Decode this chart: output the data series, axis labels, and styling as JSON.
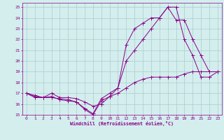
{
  "xlabel": "Windchill (Refroidissement éolien,°C)",
  "xlim": [
    -0.5,
    23.5
  ],
  "ylim": [
    15,
    25.4
  ],
  "yticks": [
    15,
    16,
    17,
    18,
    19,
    20,
    21,
    22,
    23,
    24,
    25
  ],
  "xticks": [
    0,
    1,
    2,
    3,
    4,
    5,
    6,
    7,
    8,
    9,
    10,
    11,
    12,
    13,
    14,
    15,
    16,
    17,
    18,
    19,
    20,
    21,
    22,
    23
  ],
  "bg_color": "#d4eeee",
  "grid_color": "#aacccc",
  "line_color": "#880088",
  "line1_x": [
    0,
    1,
    2,
    3,
    4,
    5,
    6,
    7,
    8,
    9,
    10,
    11,
    12,
    13,
    14,
    15,
    16,
    17,
    18,
    19,
    20,
    21,
    22,
    23
  ],
  "line1_y": [
    17,
    16.6,
    16.6,
    17,
    16.6,
    16.6,
    16.5,
    16.2,
    15.8,
    16.0,
    16.7,
    17.0,
    17.5,
    18.0,
    18.3,
    18.5,
    18.5,
    18.5,
    18.5,
    18.8,
    19.0,
    19.0,
    19.0,
    19.0
  ],
  "line2_x": [
    0,
    1,
    2,
    3,
    4,
    5,
    6,
    7,
    8,
    9,
    10,
    11,
    12,
    13,
    14,
    15,
    16,
    17,
    18,
    19,
    20,
    21,
    22,
    23
  ],
  "line2_y": [
    17,
    16.7,
    16.6,
    16.7,
    16.4,
    16.3,
    16.2,
    15.6,
    15.1,
    16.5,
    17.0,
    17.5,
    21.5,
    23.0,
    23.5,
    24.0,
    24.0,
    25.0,
    25.0,
    22.0,
    20.5,
    18.5,
    18.5,
    19.0
  ],
  "line3_x": [
    0,
    1,
    2,
    3,
    4,
    5,
    6,
    7,
    8,
    9,
    10,
    11,
    12,
    13,
    14,
    15,
    16,
    17,
    18,
    19,
    20,
    21,
    22,
    23
  ],
  "line3_y": [
    17,
    16.8,
    16.6,
    16.6,
    16.5,
    16.4,
    16.2,
    15.5,
    15.0,
    16.3,
    16.7,
    17.5,
    20.0,
    21.0,
    22.0,
    23.0,
    24.0,
    25.0,
    23.8,
    23.8,
    22.0,
    20.5,
    19.0,
    19.0
  ]
}
